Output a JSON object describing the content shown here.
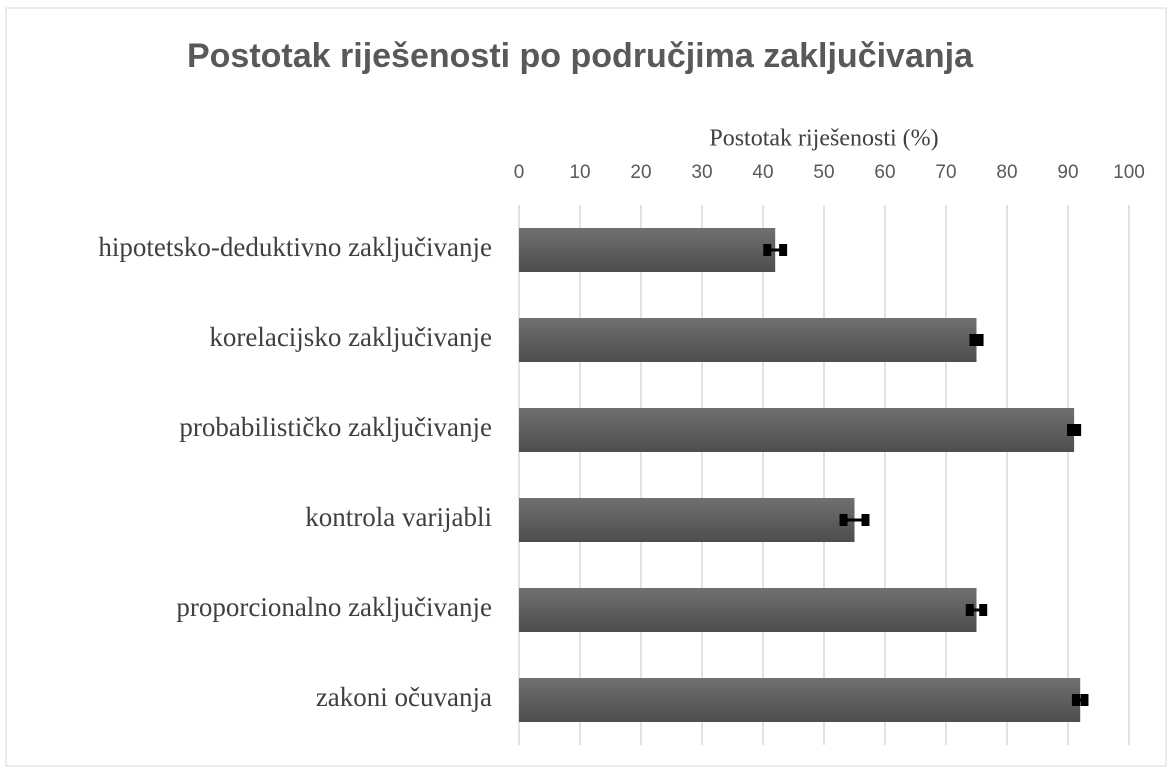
{
  "chart_data": {
    "type": "bar",
    "orientation": "horizontal",
    "title": "Postotak riješenosti po područjima zaključivanja",
    "x_label": "Postotak riješenosti (%)",
    "categories": [
      "hipotetsko-deduktivno zaključivanje",
      "korelacijsko zaključivanje",
      "probabilističko zaključivanje",
      "kontrola varijabli",
      "proporcionalno zaključivanje",
      "zakoni očuvanja"
    ],
    "values": [
      42,
      75,
      91,
      55,
      75,
      92
    ],
    "errors": [
      1.3,
      0.5,
      0.5,
      1.8,
      1.1,
      0.7
    ],
    "color": "#5b5b5b",
    "error_color": "#000000",
    "xlim": [
      0,
      100
    ],
    "xticks": [
      0,
      10,
      20,
      30,
      40,
      50,
      60,
      70,
      80,
      90,
      100
    ],
    "grid": true
  }
}
